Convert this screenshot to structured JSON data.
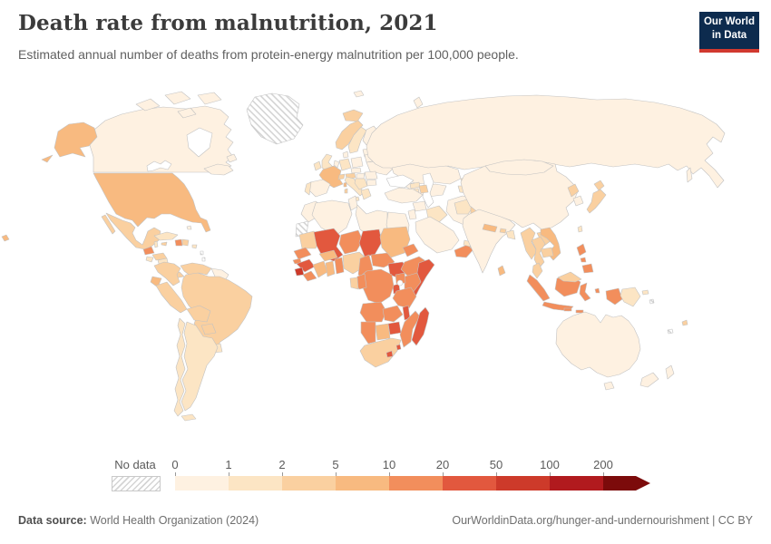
{
  "header": {
    "title": "Death rate from malnutrition, 2021",
    "subtitle": "Estimated annual number of deaths from protein-energy malnutrition per 100,000 people.",
    "logo": [
      "Our World",
      "in Data"
    ]
  },
  "legend": {
    "no_data_label": "No data",
    "tick_labels": [
      "0",
      "1",
      "2",
      "5",
      "10",
      "20",
      "50",
      "100",
      "200"
    ]
  },
  "footer": {
    "source_label": "Data source:",
    "source_value": " World Health Organization (2024)",
    "credit": "OurWorldinData.org/hunger-and-undernourishment | CC BY"
  },
  "colors": {
    "logo_bg": "#0d2b4e",
    "logo_stripe": "#d1392f",
    "border_gray": "#c2c2c2",
    "text_dark": "#3b3b3b",
    "text_gray": "#606060"
  },
  "chart_data": {
    "type": "choropleth",
    "title": "Death rate from malnutrition, 2021",
    "unit": "deaths from protein-energy malnutrition per 100,000 people",
    "year": 2021,
    "legend_position": "bottom",
    "bin_colors": [
      "#fef1e1",
      "#fce5c4",
      "#fad0a0",
      "#f8ba80",
      "#f28e5c",
      "#e2583e",
      "#cd3a2a",
      "#b11a1e",
      "#7c0b0b"
    ],
    "bin_ranges": [
      "0-1",
      "1-2",
      "2-5",
      "5-10",
      "10-20",
      "20-50",
      "50-100",
      "100-200",
      "200+"
    ],
    "regions": [
      {
        "id": "canada",
        "name": "Canada",
        "bin": 0
      },
      {
        "id": "usa",
        "name": "United States",
        "bin": 3
      },
      {
        "id": "greenland",
        "name": "Greenland",
        "bin": "no_data"
      },
      {
        "id": "mexico",
        "name": "Mexico",
        "bin": 2
      },
      {
        "id": "belize",
        "name": "Belize",
        "bin": 1
      },
      {
        "id": "guatemala",
        "name": "Guatemala",
        "bin": 4
      },
      {
        "id": "honduras",
        "name": "Honduras",
        "bin": 2
      },
      {
        "id": "el-salvador",
        "name": "El Salvador",
        "bin": 1
      },
      {
        "id": "nicaragua",
        "name": "Nicaragua",
        "bin": 1
      },
      {
        "id": "costa-rica",
        "name": "Costa Rica",
        "bin": 2
      },
      {
        "id": "panama",
        "name": "Panama",
        "bin": 2
      },
      {
        "id": "cuba",
        "name": "Cuba",
        "bin": 1
      },
      {
        "id": "jamaica",
        "name": "Jamaica",
        "bin": 2
      },
      {
        "id": "haiti",
        "name": "Haiti",
        "bin": 4
      },
      {
        "id": "dominican-republic",
        "name": "Dominican Republic",
        "bin": 2
      },
      {
        "id": "puerto-rico",
        "name": "Puerto Rico",
        "bin": 1
      },
      {
        "id": "bahamas",
        "name": "Bahamas",
        "bin": 0
      },
      {
        "id": "lesser-antilles",
        "name": "Lesser Antilles",
        "bin": "no_data"
      },
      {
        "id": "colombia",
        "name": "Colombia",
        "bin": 2
      },
      {
        "id": "venezuela",
        "name": "Venezuela",
        "bin": 2
      },
      {
        "id": "guyana",
        "name": "Guyana and Suriname",
        "bin": 0
      },
      {
        "id": "ecuador",
        "name": "Ecuador",
        "bin": 3
      },
      {
        "id": "peru",
        "name": "Peru",
        "bin": 2
      },
      {
        "id": "brazil",
        "name": "Brazil",
        "bin": 2
      },
      {
        "id": "bolivia",
        "name": "Bolivia",
        "bin": 2
      },
      {
        "id": "paraguay",
        "name": "Paraguay",
        "bin": 2
      },
      {
        "id": "uruguay",
        "name": "Uruguay",
        "bin": 1
      },
      {
        "id": "argentina",
        "name": "Argentina",
        "bin": 1
      },
      {
        "id": "chile",
        "name": "Chile",
        "bin": 1
      },
      {
        "id": "iceland",
        "name": "Iceland",
        "bin": 2
      },
      {
        "id": "norway",
        "name": "Norway",
        "bin": 2
      },
      {
        "id": "svalbard",
        "name": "Svalbard",
        "bin": 0
      },
      {
        "id": "sweden",
        "name": "Sweden",
        "bin": 1
      },
      {
        "id": "finland",
        "name": "Finland",
        "bin": 0
      },
      {
        "id": "uk",
        "name": "United Kingdom",
        "bin": 1
      },
      {
        "id": "ireland",
        "name": "Ireland",
        "bin": 1
      },
      {
        "id": "france",
        "name": "France",
        "bin": 3
      },
      {
        "id": "spain",
        "name": "Spain",
        "bin": 0
      },
      {
        "id": "portugal",
        "name": "Portugal",
        "bin": 1
      },
      {
        "id": "germany",
        "name": "Germany",
        "bin": 1
      },
      {
        "id": "benelux",
        "name": "Netherlands and Belgium",
        "bin": 0
      },
      {
        "id": "denmark",
        "name": "Denmark",
        "bin": 0
      },
      {
        "id": "poland",
        "name": "Poland",
        "bin": 0
      },
      {
        "id": "baltics",
        "name": "Baltic states",
        "bin": 0
      },
      {
        "id": "belarus",
        "name": "Belarus",
        "bin": 0
      },
      {
        "id": "ukraine",
        "name": "Ukraine",
        "bin": 0
      },
      {
        "id": "czech-slovakia",
        "name": "Czechia and Slovakia",
        "bin": 0
      },
      {
        "id": "hungary",
        "name": "Hungary",
        "bin": 0
      },
      {
        "id": "romania",
        "name": "Romania",
        "bin": 0
      },
      {
        "id": "bulgaria",
        "name": "Bulgaria",
        "bin": 0
      },
      {
        "id": "balkans",
        "name": "Western Balkans",
        "bin": 1
      },
      {
        "id": "greece",
        "name": "Greece",
        "bin": 1
      },
      {
        "id": "italy",
        "name": "Italy",
        "bin": 1
      },
      {
        "id": "sardinia",
        "name": "Sardinia",
        "bin": 2
      },
      {
        "id": "switzerland",
        "name": "Switzerland",
        "bin": 2
      },
      {
        "id": "austria",
        "name": "Austria",
        "bin": 2
      },
      {
        "id": "russia",
        "name": "Russia",
        "bin": 0
      },
      {
        "id": "kazakhstan",
        "name": "Kazakhstan",
        "bin": 0
      },
      {
        "id": "central-asia",
        "name": "Turkmenistan and Uzbekistan",
        "bin": 0
      },
      {
        "id": "kyrgyzstan",
        "name": "Kyrgyzstan",
        "bin": 1
      },
      {
        "id": "tajikistan",
        "name": "Tajikistan",
        "bin": 1
      },
      {
        "id": "georgia",
        "name": "Georgia",
        "bin": 1
      },
      {
        "id": "armenia",
        "name": "Armenia",
        "bin": 1
      },
      {
        "id": "azerbaijan",
        "name": "Azerbaijan",
        "bin": 2
      },
      {
        "id": "turkey",
        "name": "Turkey",
        "bin": 0
      },
      {
        "id": "syria",
        "name": "Syria",
        "bin": 0
      },
      {
        "id": "iraq",
        "name": "Iraq",
        "bin": 1
      },
      {
        "id": "iran",
        "name": "Iran",
        "bin": 0
      },
      {
        "id": "jordan",
        "name": "Jordan and Israel",
        "bin": 0
      },
      {
        "id": "saudi-arabia",
        "name": "Saudi Arabia",
        "bin": 0
      },
      {
        "id": "yemen",
        "name": "Yemen",
        "bin": 4
      },
      {
        "id": "oman",
        "name": "Oman",
        "bin": 3
      },
      {
        "id": "uae",
        "name": "United Arab Emirates",
        "bin": 1
      },
      {
        "id": "afghanistan",
        "name": "Afghanistan",
        "bin": 1
      },
      {
        "id": "pakistan",
        "name": "Pakistan",
        "bin": 2
      },
      {
        "id": "india",
        "name": "India",
        "bin": 0
      },
      {
        "id": "nepal",
        "name": "Nepal",
        "bin": 3
      },
      {
        "id": "bhutan",
        "name": "Bhutan",
        "bin": 2
      },
      {
        "id": "bangladesh",
        "name": "Bangladesh",
        "bin": 1
      },
      {
        "id": "sri-lanka",
        "name": "Sri Lanka",
        "bin": 3
      },
      {
        "id": "myanmar",
        "name": "Myanmar",
        "bin": 2
      },
      {
        "id": "thailand",
        "name": "Thailand",
        "bin": 2
      },
      {
        "id": "laos",
        "name": "Laos",
        "bin": 2
      },
      {
        "id": "cambodia",
        "name": "Cambodia",
        "bin": 2
      },
      {
        "id": "vietnam",
        "name": "Vietnam",
        "bin": 3
      },
      {
        "id": "malaysia",
        "name": "Malaysia",
        "bin": 2
      },
      {
        "id": "indonesia",
        "name": "Indonesia",
        "bin": 4
      },
      {
        "id": "philippines",
        "name": "Philippines",
        "bin": 4
      },
      {
        "id": "papua-new-guinea",
        "name": "Papua New Guinea",
        "bin": 1
      },
      {
        "id": "china",
        "name": "China",
        "bin": 0
      },
      {
        "id": "mongolia",
        "name": "Mongolia",
        "bin": 0
      },
      {
        "id": "north-korea",
        "name": "North Korea",
        "bin": 2
      },
      {
        "id": "south-korea",
        "name": "South Korea",
        "bin": 0
      },
      {
        "id": "japan",
        "name": "Japan",
        "bin": 2
      },
      {
        "id": "taiwan",
        "name": "Taiwan",
        "bin": 1
      },
      {
        "id": "australia",
        "name": "Australia",
        "bin": 0
      },
      {
        "id": "new-zealand",
        "name": "New Zealand",
        "bin": 0
      },
      {
        "id": "melanesia",
        "name": "Melanesia",
        "bin": 2
      },
      {
        "id": "pacific-islands",
        "name": "Pacific islands",
        "bin": "no_data"
      },
      {
        "id": "morocco",
        "name": "Morocco",
        "bin": 0
      },
      {
        "id": "western-sahara",
        "name": "Western Sahara",
        "bin": "no_data"
      },
      {
        "id": "algeria",
        "name": "Algeria",
        "bin": 0
      },
      {
        "id": "tunisia",
        "name": "Tunisia",
        "bin": 0
      },
      {
        "id": "libya",
        "name": "Libya",
        "bin": 0
      },
      {
        "id": "egypt",
        "name": "Egypt",
        "bin": 0
      },
      {
        "id": "mauritania",
        "name": "Mauritania",
        "bin": 2
      },
      {
        "id": "mali",
        "name": "Mali",
        "bin": 5
      },
      {
        "id": "niger",
        "name": "Niger",
        "bin": 4
      },
      {
        "id": "chad",
        "name": "Chad",
        "bin": 5
      },
      {
        "id": "sudan",
        "name": "Sudan",
        "bin": 3
      },
      {
        "id": "eritrea",
        "name": "Eritrea",
        "bin": 4
      },
      {
        "id": "djibouti",
        "name": "Djibouti",
        "bin": 5
      },
      {
        "id": "senegal",
        "name": "Senegal",
        "bin": 4
      },
      {
        "id": "guinea-bissau",
        "name": "Guinea-Bissau",
        "bin": 4
      },
      {
        "id": "guinea",
        "name": "Guinea",
        "bin": 5
      },
      {
        "id": "sierra-leone",
        "name": "Sierra Leone",
        "bin": 6
      },
      {
        "id": "liberia",
        "name": "Liberia",
        "bin": 4
      },
      {
        "id": "ivory-coast",
        "name": "Cote d'Ivoire",
        "bin": 3
      },
      {
        "id": "ghana",
        "name": "Ghana",
        "bin": 3
      },
      {
        "id": "togo-benin",
        "name": "Togo and Benin",
        "bin": 4
      },
      {
        "id": "burkina-faso",
        "name": "Burkina Faso",
        "bin": 3
      },
      {
        "id": "nigeria",
        "name": "Nigeria",
        "bin": 2
      },
      {
        "id": "cameroon",
        "name": "Cameroon",
        "bin": 4
      },
      {
        "id": "central-african-republic",
        "name": "Central African Republic",
        "bin": 4
      },
      {
        "id": "south-sudan",
        "name": "South Sudan",
        "bin": 5
      },
      {
        "id": "ethiopia",
        "name": "Ethiopia",
        "bin": 4
      },
      {
        "id": "somalia",
        "name": "Somalia",
        "bin": 5
      },
      {
        "id": "kenya",
        "name": "Kenya",
        "bin": 4
      },
      {
        "id": "uganda",
        "name": "Uganda",
        "bin": 4
      },
      {
        "id": "rwanda-burundi",
        "name": "Rwanda and Burundi",
        "bin": 5
      },
      {
        "id": "drc",
        "name": "Democratic Republic of Congo",
        "bin": 4
      },
      {
        "id": "congo",
        "name": "Congo",
        "bin": 4
      },
      {
        "id": "gabon",
        "name": "Gabon",
        "bin": 2
      },
      {
        "id": "tanzania",
        "name": "Tanzania",
        "bin": 4
      },
      {
        "id": "angola",
        "name": "Angola",
        "bin": 4
      },
      {
        "id": "zambia",
        "name": "Zambia",
        "bin": 4
      },
      {
        "id": "malawi",
        "name": "Malawi",
        "bin": 5
      },
      {
        "id": "mozambique",
        "name": "Mozambique",
        "bin": 4
      },
      {
        "id": "zimbabwe",
        "name": "Zimbabwe",
        "bin": 5
      },
      {
        "id": "botswana",
        "name": "Botswana",
        "bin": 3
      },
      {
        "id": "namibia",
        "name": "Namibia",
        "bin": 4
      },
      {
        "id": "south-africa",
        "name": "South Africa",
        "bin": 2
      },
      {
        "id": "lesotho",
        "name": "Lesotho",
        "bin": 5
      },
      {
        "id": "eswatini",
        "name": "Eswatini",
        "bin": 5
      },
      {
        "id": "madagascar",
        "name": "Madagascar",
        "bin": 5
      }
    ]
  }
}
